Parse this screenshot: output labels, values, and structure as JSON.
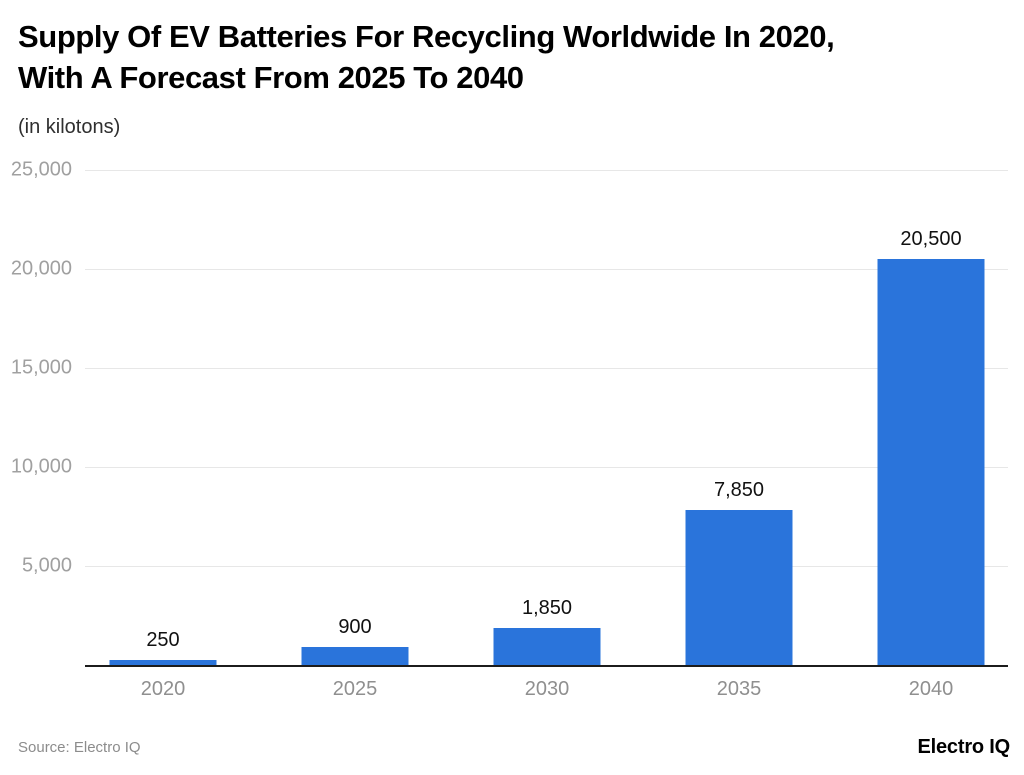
{
  "header": {
    "title_line1": "Supply Of EV Batteries For Recycling Worldwide In 2020,",
    "title_line2": "With A Forecast From 2025 To 2040",
    "subtitle": "(in kilotons)"
  },
  "chart_data": {
    "type": "bar",
    "title": "Supply Of EV Batteries For Recycling Worldwide In 2020, With A Forecast From 2025 To 2040",
    "subtitle": "(in kilotons)",
    "categories": [
      "2020",
      "2025",
      "2030",
      "2035",
      "2040"
    ],
    "values": [
      250,
      900,
      1850,
      7850,
      20500
    ],
    "value_labels": [
      "250",
      "900",
      "1,850",
      "7,850",
      "20,500"
    ],
    "xlabel": "",
    "ylabel": "(in kilotons)",
    "ylim": [
      0,
      25000
    ],
    "yticks": [
      5000,
      10000,
      15000,
      20000,
      25000
    ],
    "ytick_labels": [
      "5,000",
      "10,000",
      "15,000",
      "20,000",
      "25,000"
    ],
    "grid": true,
    "legend": "none",
    "bar_color": "#2a74db",
    "axis_line_color": "#1c1c1c",
    "gridline_color": "#e7e7e7"
  },
  "footer": {
    "source": "Source: Electro IQ",
    "logo": "Electro IQ"
  }
}
